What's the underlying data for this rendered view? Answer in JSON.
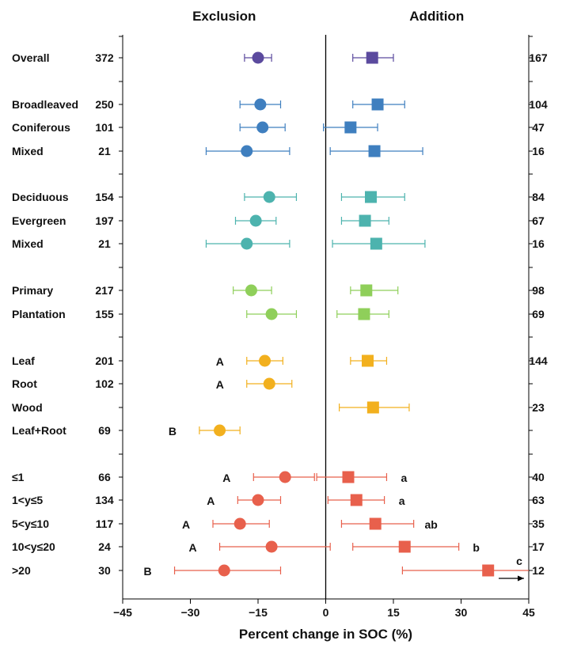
{
  "chart_data": {
    "type": "forest",
    "panels": [
      "Exclusion",
      "Addition"
    ],
    "xlabel": "Percent change in SOC (%)",
    "xlim": [
      -45,
      45
    ],
    "xticks": [
      "−45",
      "−30",
      "−15",
      "0",
      "15",
      "30",
      "45"
    ],
    "xtick_values": [
      -45,
      -30,
      -15,
      0,
      15,
      30,
      45
    ],
    "grid": false,
    "colors": {
      "overall": "#5b4a9e",
      "forest_type": "#3f7fbf",
      "leaf_habit": "#4db3ae",
      "stand_origin": "#8fcf5a",
      "litter_type": "#f2b01e",
      "duration": "#e8604c"
    },
    "rows": [
      {
        "label": "Overall",
        "group": "overall",
        "exclusion": {
          "n": "372",
          "mean": -15,
          "lo": -18,
          "hi": -12
        },
        "addition": {
          "n": "167",
          "mean": 10.3,
          "lo": 6,
          "hi": 15
        }
      },
      {
        "label": "Broadleaved",
        "group": "forest_type",
        "exclusion": {
          "n": "250",
          "mean": -14.5,
          "lo": -19,
          "hi": -10
        },
        "addition": {
          "n": "104",
          "mean": 11.5,
          "lo": 6,
          "hi": 17.5
        }
      },
      {
        "label": "Coniferous",
        "group": "forest_type",
        "exclusion": {
          "n": "101",
          "mean": -14,
          "lo": -19,
          "hi": -9
        },
        "addition": {
          "n": "47",
          "mean": 5.5,
          "lo": -0.5,
          "hi": 11.5
        }
      },
      {
        "label": "Mixed",
        "group": "forest_type",
        "exclusion": {
          "n": "21",
          "mean": -17.5,
          "lo": -26.5,
          "hi": -8
        },
        "addition": {
          "n": "16",
          "mean": 10.8,
          "lo": 1,
          "hi": 21.5
        }
      },
      {
        "label": "Deciduous",
        "group": "leaf_habit",
        "exclusion": {
          "n": "154",
          "mean": -12.5,
          "lo": -18,
          "hi": -6.5
        },
        "addition": {
          "n": "84",
          "mean": 10,
          "lo": 3.5,
          "hi": 17.5
        }
      },
      {
        "label": "Evergreen",
        "group": "leaf_habit",
        "exclusion": {
          "n": "197",
          "mean": -15.5,
          "lo": -20,
          "hi": -11
        },
        "addition": {
          "n": "67",
          "mean": 8.7,
          "lo": 3.5,
          "hi": 14
        }
      },
      {
        "label": "Mixed",
        "group": "leaf_habit",
        "exclusion": {
          "n": "21",
          "mean": -17.5,
          "lo": -26.5,
          "hi": -8
        },
        "addition": {
          "n": "16",
          "mean": 11.2,
          "lo": 1.5,
          "hi": 22
        }
      },
      {
        "label": "Primary",
        "group": "stand_origin",
        "exclusion": {
          "n": "217",
          "mean": -16.5,
          "lo": -20.5,
          "hi": -12
        },
        "addition": {
          "n": "98",
          "mean": 9,
          "lo": 5.5,
          "hi": 16
        }
      },
      {
        "label": "Plantation",
        "group": "stand_origin",
        "exclusion": {
          "n": "155",
          "mean": -12,
          "lo": -17.5,
          "hi": -6.5
        },
        "addition": {
          "n": "69",
          "mean": 8.5,
          "lo": 2.5,
          "hi": 14
        }
      },
      {
        "label": "Leaf",
        "group": "litter_type",
        "exclusion": {
          "n": "201",
          "mean": -13.5,
          "lo": -17.5,
          "hi": -9.5
        },
        "exclusion_sig": "A",
        "addition": {
          "n": "144",
          "mean": 9.3,
          "lo": 5.5,
          "hi": 13.5
        }
      },
      {
        "label": "Root",
        "group": "litter_type",
        "exclusion": {
          "n": "102",
          "mean": -12.5,
          "lo": -17.5,
          "hi": -7.5
        },
        "exclusion_sig": "A",
        "addition": null
      },
      {
        "label": "Wood",
        "group": "litter_type",
        "exclusion": null,
        "addition": {
          "n": "23",
          "mean": 10.5,
          "lo": 3,
          "hi": 18.5
        }
      },
      {
        "label": "Leaf+Root",
        "group": "litter_type",
        "exclusion": {
          "n": "69",
          "mean": -23.5,
          "lo": -28,
          "hi": -19
        },
        "exclusion_sig": "B",
        "addition": null
      },
      {
        "label": "≤1",
        "group": "duration",
        "exclusion": {
          "n": "66",
          "mean": -9,
          "lo": -16,
          "hi": -2.5
        },
        "exclusion_sig": "A",
        "addition": {
          "n": "40",
          "mean": 5,
          "lo": -2,
          "hi": 13.5
        },
        "addition_sig": "a"
      },
      {
        "label": "1<y≤5",
        "group": "duration",
        "exclusion": {
          "n": "134",
          "mean": -15,
          "lo": -19.5,
          "hi": -10
        },
        "exclusion_sig": "A",
        "addition": {
          "n": "63",
          "mean": 6.8,
          "lo": 0.5,
          "hi": 13
        },
        "addition_sig": "a"
      },
      {
        "label": "5<y≤10",
        "group": "duration",
        "exclusion": {
          "n": "117",
          "mean": -19,
          "lo": -25,
          "hi": -12.5
        },
        "exclusion_sig": "A",
        "addition": {
          "n": "35",
          "mean": 11,
          "lo": 3.5,
          "hi": 19.5
        },
        "addition_sig": "ab"
      },
      {
        "label": "10<y≤20",
        "group": "duration",
        "exclusion": {
          "n": "24",
          "mean": -12,
          "lo": -23.5,
          "hi": 1
        },
        "exclusion_sig": "A",
        "addition": {
          "n": "17",
          "mean": 17.5,
          "lo": 6,
          "hi": 29.5
        },
        "addition_sig": "b"
      },
      {
        "label": ">20",
        "group": "duration",
        "exclusion": {
          "n": "30",
          "mean": -22.5,
          "lo": -33.5,
          "hi": -10
        },
        "exclusion_sig": "B",
        "addition": {
          "n": "12",
          "mean": 36,
          "lo": 17,
          "hi": 45,
          "hi_truncated": true
        },
        "addition_sig": "c"
      }
    ]
  }
}
